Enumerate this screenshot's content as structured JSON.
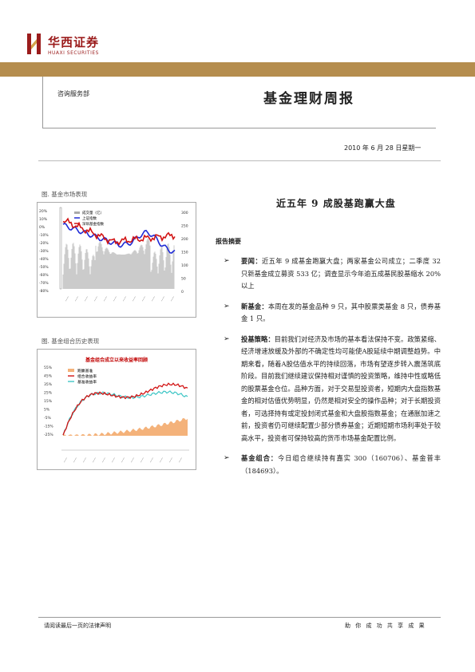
{
  "header": {
    "brand_cn": "华西证券",
    "brand_en": "HUAXI SECURITIES",
    "department": "咨询服务部",
    "title": "基金理财周报",
    "date": "2010 年 6 月 28 日星期一"
  },
  "colors": {
    "brand_red": "#9b1c1c",
    "band": "#b58d4e"
  },
  "left": {
    "chart1_caption": "图. 基金市场表现",
    "chart2_caption": "图. 基金组合历史表现"
  },
  "right": {
    "headline": "近五年 9 成股基跑赢大盘",
    "summary_label": "报告摘要",
    "bullets": [
      {
        "lead": "要闻：",
        "text": "近五年 9 成基金跑赢大盘；两家基金公司成立；二季度 32 只新基金成立募资 533 亿；调查显示今年逾五成基民股基缩水 20%以上"
      },
      {
        "lead": "新基金：",
        "text": "本周在发的基金品种 9 只，其中股票类基金 8 只，债券基金 1 只。"
      },
      {
        "lead": "投基策略：",
        "text": "目前我们对经济及市场的基本看法保持不变。政策紧缩、经济增速放缓及外部的不确定性均可能使A股延续中期调整趋势。中期来看，随着A股估值水平的持续回落，市场有望逐步转入震荡筑底阶段。目前我们继续建议保持相对谨慎的投资策略，维持中性或略低的股票基金仓位。品种方面，对于交易型投资者，短期内大盘指数基金的相对估值优势明显，仍然是相对安全的操作品种；对于长期投资者，可选择持有或定投封闭式基金和大盘股指数基金；在通胀加速之前，投资者仍可继续配置少部分债券基金；近期短期市场利率处于较高水平，投资者可保持较高的货币市场基金配置比例。"
      },
      {
        "lead": "基金组合：",
        "text": "今日组合继续持有嘉实 300（160706）、基金普丰（184693）。"
      }
    ]
  },
  "footer": {
    "left": "请阅读最后一页的法律声明",
    "right": "助 你 成 功  共 享 成 果"
  },
  "chart_data": [
    {
      "type": "line",
      "legend": [
        "成交量（亿）",
        "上证指数",
        "深圳基金指数"
      ],
      "y_left_ticks": [
        "20%",
        "10%",
        "0%",
        "-10%",
        "-20%",
        "-30%",
        "-40%",
        "-50%",
        "-60%",
        "-70%",
        "-80%"
      ],
      "y_right_ticks": [
        "300",
        "250",
        "200",
        "150",
        "100",
        "50",
        "0"
      ],
      "series_colors": [
        "#aaaaaa",
        "#1f2bd6",
        "#d21414"
      ]
    },
    {
      "type": "line",
      "title": "基金组合成立以来收益率回顾",
      "legend": [
        "跑赢基准",
        "组合收益率",
        "基准收益率"
      ],
      "y_ticks": [
        "55%",
        "45%",
        "35%",
        "25%",
        "15%",
        "5%",
        "-5%",
        "-15%",
        "-25%"
      ],
      "series_colors": [
        "#f4b27a",
        "#d21414",
        "#3fc6c6"
      ]
    }
  ]
}
